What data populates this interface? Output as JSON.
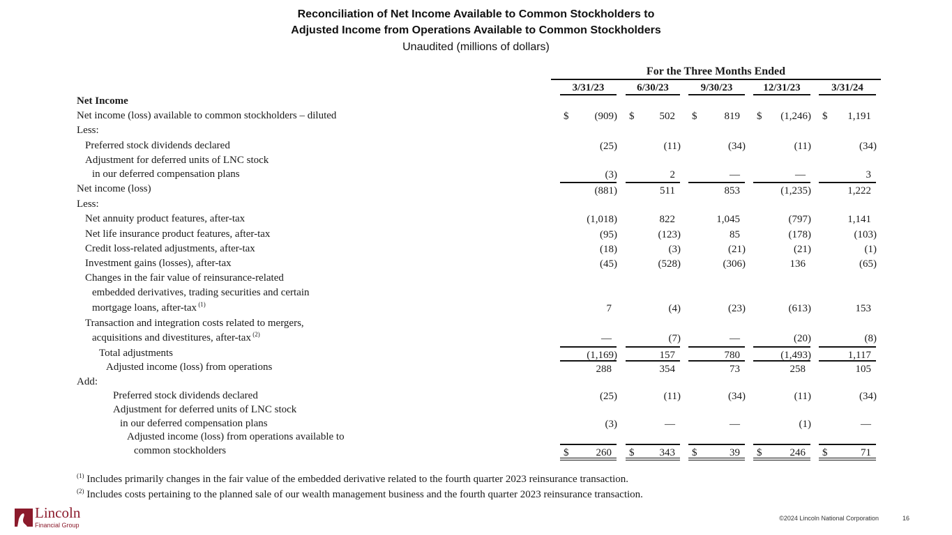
{
  "header": {
    "title_line1": "Reconciliation of Net Income Available to Common Stockholders to",
    "title_line2": "Adjusted Income from Operations Available to Common Stockholders",
    "subtitle": "Unaudited (millions of dollars)"
  },
  "table": {
    "period_header": "For the Three Months Ended",
    "columns": [
      "3/31/23",
      "6/30/23",
      "9/30/23",
      "12/31/23",
      "3/31/24"
    ],
    "rows": [
      {
        "label": "Net Income",
        "indent": 0,
        "bold": true,
        "values": null
      },
      {
        "label": "Net income (loss) available to common stockholders – diluted",
        "indent": 0,
        "dollar": true,
        "values": [
          "(909)",
          "502",
          "819",
          "(1,246)",
          "1,191"
        ]
      },
      {
        "label": "Less:",
        "indent": 0,
        "values": null
      },
      {
        "label": "Preferred stock dividends declared",
        "indent": 1,
        "values": [
          "(25)",
          "(11)",
          "(34)",
          "(11)",
          "(34)"
        ]
      },
      {
        "label": "Adjustment for deferred units of LNC stock",
        "indent": 1,
        "values": null
      },
      {
        "label": "in our deferred compensation plans",
        "indent": 2,
        "values": [
          "(3)",
          "2",
          "—",
          "—",
          "3"
        ]
      },
      {
        "label": "Net income (loss)",
        "indent": 0,
        "border": "top",
        "values": [
          "(881)",
          "511",
          "853",
          "(1,235)",
          "1,222"
        ]
      },
      {
        "label": "Less:",
        "indent": 0,
        "values": null
      },
      {
        "label": "Net annuity product features, after-tax",
        "indent": 1,
        "values": [
          "(1,018)",
          "822",
          "1,045",
          "(797)",
          "1,141"
        ]
      },
      {
        "label": "Net life insurance product features, after-tax",
        "indent": 1,
        "values": [
          "(95)",
          "(123)",
          "85",
          "(178)",
          "(103)"
        ]
      },
      {
        "label": "Credit loss-related adjustments, after-tax",
        "indent": 1,
        "values": [
          "(18)",
          "(3)",
          "(21)",
          "(21)",
          "(1)"
        ]
      },
      {
        "label": "Investment gains (losses), after-tax",
        "indent": 1,
        "values": [
          "(45)",
          "(528)",
          "(306)",
          "136",
          "(65)"
        ]
      },
      {
        "label": "Changes in the fair value of reinsurance-related",
        "indent": 1,
        "values": null
      },
      {
        "label": "embedded derivatives, trading securities and certain",
        "indent": 2,
        "values": null
      },
      {
        "label": "mortgage loans, after-tax",
        "note": "(1)",
        "indent": 2,
        "values": [
          "7",
          "(4)",
          "(23)",
          "(613)",
          "153"
        ]
      },
      {
        "label": "Transaction and integration costs related to mergers,",
        "indent": 1,
        "values": null
      },
      {
        "label": "acquisitions and divestitures, after-tax",
        "note": "(2)",
        "indent": 2,
        "values": [
          "—",
          "(7)",
          "—",
          "(20)",
          "(8)"
        ]
      },
      {
        "label": "Total adjustments",
        "indent": 3,
        "border": "top",
        "values": [
          "(1,169)",
          "157",
          "780",
          "(1,493)",
          "1,117"
        ]
      },
      {
        "label": "Adjusted income (loss) from operations",
        "indent": 4,
        "border": "top",
        "values": [
          "288",
          "354",
          "73",
          "258",
          "105"
        ]
      },
      {
        "label": "Add:",
        "indent": 0,
        "values": null
      },
      {
        "label": "Preferred stock dividends declared",
        "indent": 5,
        "values": [
          "(25)",
          "(11)",
          "(34)",
          "(11)",
          "(34)"
        ]
      },
      {
        "label": "Adjustment for deferred units of LNC stock",
        "indent": 5,
        "values": null
      },
      {
        "label": "in our deferred compensation plans",
        "indent": 6,
        "values": [
          "(3)",
          "—",
          "—",
          "(1)",
          "—"
        ]
      },
      {
        "label": "Adjusted income (loss) from operations available to",
        "indent": 7,
        "values": null
      },
      {
        "label": "common stockholders",
        "indent": 8,
        "dollar": true,
        "border": "total",
        "values": [
          "260",
          "343",
          "39",
          "246",
          "71"
        ]
      }
    ]
  },
  "footnotes": [
    {
      "mark": "(1)",
      "text": "Includes primarily changes in the fair value of the embedded derivative related to the fourth quarter 2023 reinsurance transaction."
    },
    {
      "mark": "(2)",
      "text": "Includes costs pertaining to the planned sale of our wealth management business and the fourth quarter 2023 reinsurance transaction."
    }
  ],
  "footer": {
    "logo_name": "Lincoln",
    "logo_sub": "Financial Group",
    "copyright": "©2024 Lincoln National Corporation",
    "page": "16"
  },
  "colors": {
    "brand": "#8b1a2b"
  }
}
